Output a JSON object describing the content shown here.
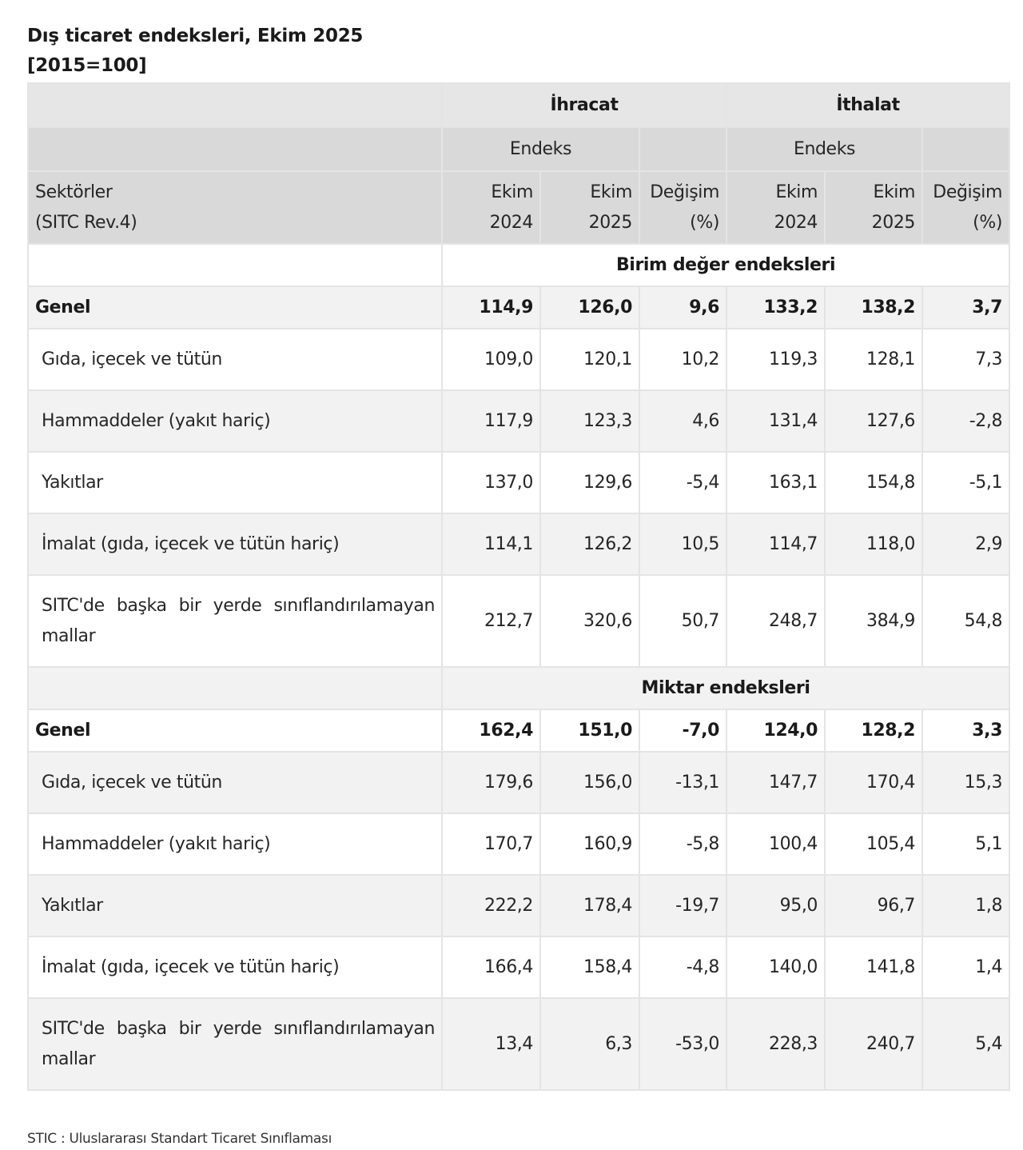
{
  "title": "Dış ticaret endeksleri, Ekim 2025",
  "subtitle": "[2015=100]",
  "header": {
    "groups": [
      "İhracat",
      "İthalat"
    ],
    "sub_groups": [
      "Endeks",
      "Endeks"
    ],
    "row_label_line1": "Sektörler",
    "row_label_line2": "(SITC Rev.4)",
    "columns": [
      {
        "line1": "Ekim",
        "line2": "2024"
      },
      {
        "line1": "Ekim",
        "line2": "2025"
      },
      {
        "line1": "Değişim",
        "line2": "(%)"
      },
      {
        "line1": "Ekim",
        "line2": "2024"
      },
      {
        "line1": "Ekim",
        "line2": "2025"
      },
      {
        "line1": "Değişim",
        "line2": "(%)"
      }
    ]
  },
  "sections": [
    {
      "title": "Birim değer endeksleri",
      "genel": {
        "label": "Genel",
        "values": [
          "114,9",
          "126,0",
          "9,6",
          "133,2",
          "138,2",
          "3,7"
        ]
      },
      "rows": [
        {
          "label": "Gıda, içecek ve tütün",
          "values": [
            "109,0",
            "120,1",
            "10,2",
            "119,3",
            "128,1",
            "7,3"
          ]
        },
        {
          "label": "Hammaddeler (yakıt hariç)",
          "values": [
            "117,9",
            "123,3",
            "4,6",
            "131,4",
            "127,6",
            "-2,8"
          ]
        },
        {
          "label": "Yakıtlar",
          "values": [
            "137,0",
            "129,6",
            "-5,4",
            "163,1",
            "154,8",
            "-5,1"
          ]
        },
        {
          "label": "İmalat (gıda, içecek ve tütün hariç)",
          "values": [
            "114,1",
            "126,2",
            "10,5",
            "114,7",
            "118,0",
            "2,9"
          ]
        },
        {
          "label": "SITC'de başka bir yerde sınıflandırılamayan mallar",
          "values": [
            "212,7",
            "320,6",
            "50,7",
            "248,7",
            "384,9",
            "54,8"
          ]
        }
      ]
    },
    {
      "title": "Miktar endeksleri",
      "genel": {
        "label": "Genel",
        "values": [
          "162,4",
          "151,0",
          "-7,0",
          "124,0",
          "128,2",
          "3,3"
        ]
      },
      "rows": [
        {
          "label": "Gıda, içecek ve tütün",
          "values": [
            "179,6",
            "156,0",
            "-13,1",
            "147,7",
            "170,4",
            "15,3"
          ]
        },
        {
          "label": "Hammaddeler (yakıt hariç)",
          "values": [
            "170,7",
            "160,9",
            "-5,8",
            "100,4",
            "105,4",
            "5,1"
          ]
        },
        {
          "label": "Yakıtlar",
          "values": [
            "222,2",
            "178,4",
            "-19,7",
            "95,0",
            "96,7",
            "1,8"
          ]
        },
        {
          "label": "İmalat (gıda, içecek ve tütün hariç)",
          "values": [
            "166,4",
            "158,4",
            "-4,8",
            "140,0",
            "141,8",
            "1,4"
          ]
        },
        {
          "label": "SITC'de başka bir yerde sınıflandırılamayan mallar",
          "values": [
            "13,4",
            "6,3",
            "-53,0",
            "228,3",
            "240,7",
            "5,4"
          ]
        }
      ]
    }
  ],
  "footnote": "STIC : Uluslararası Standart Ticaret Sınıflaması",
  "colors": {
    "header_top": "#e6e6e6",
    "header_sub": "#d9d9d9",
    "row_alt": "#f2f2f2",
    "border": "#e4e4e4"
  }
}
